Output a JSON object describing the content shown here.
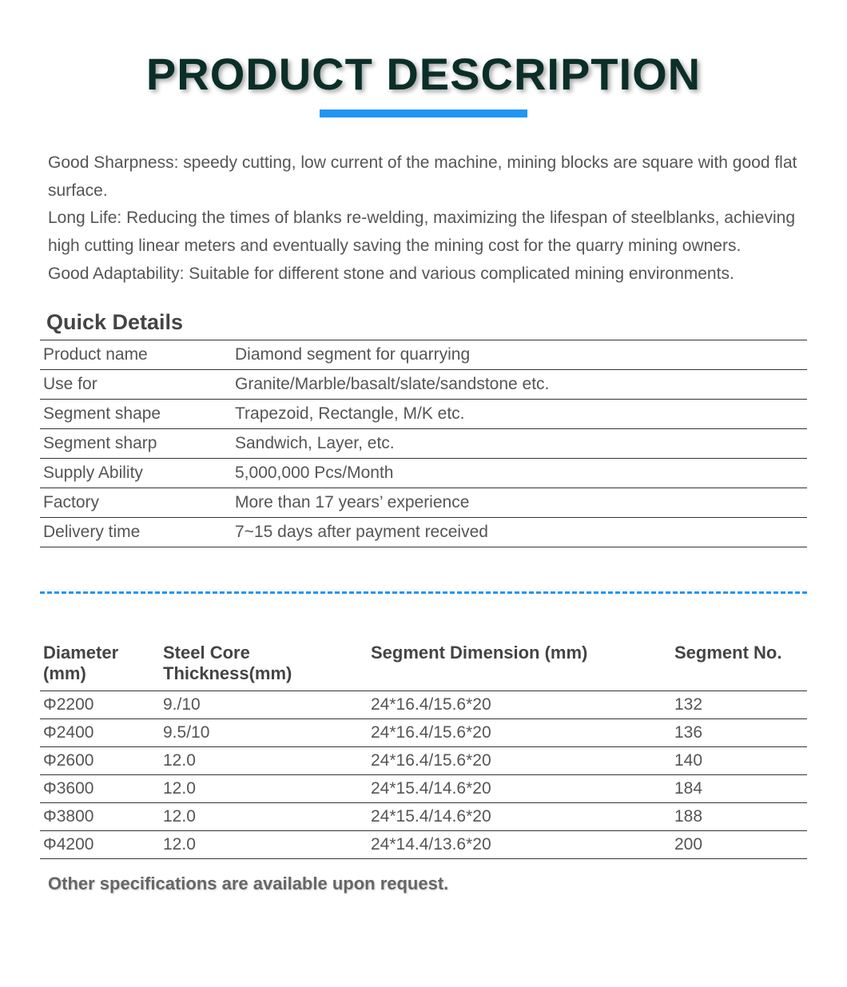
{
  "title": "PRODUCT DESCRIPTION",
  "description": {
    "line1": "Good Sharpness: speedy cutting, low current of the machine, mining blocks are square with good flat surface.",
    "line2": "Long Life: Reducing the times of blanks re-welding, maximizing the lifespan of steelblanks, achieving high cutting linear meters and eventually saving the mining cost for the quarry mining owners.",
    "line3": "Good Adaptability: Suitable for different stone and various complicated mining environments."
  },
  "quick_details_heading": "Quick Details",
  "details": [
    {
      "key": "Product name",
      "value": "Diamond segment for quarrying"
    },
    {
      "key": "Use for",
      "value": "Granite/Marble/basalt/slate/sandstone  etc."
    },
    {
      "key": "Segment shape",
      "value": "Trapezoid, Rectangle, M/K etc."
    },
    {
      "key": "Segment sharp",
      "value": "Sandwich, Layer, etc."
    },
    {
      "key": "Supply Ability",
      "value": "5,000,000 Pcs/Month"
    },
    {
      "key": "Factory",
      "value": "More than 17 years’  experience"
    },
    {
      "key": "Delivery time",
      "value": "7~15 days after payment received"
    }
  ],
  "spec_headers": {
    "diameter": "Diameter (mm)",
    "thickness": "Steel Core Thickness(mm)",
    "dimension": "Segment Dimension  (mm)",
    "segno": "Segment No."
  },
  "specs": [
    {
      "diameter": "Φ2200",
      "thickness": "9./10",
      "dimension": "24*16.4/15.6*20",
      "segno": "132"
    },
    {
      "diameter": "Φ2400",
      "thickness": "9.5/10",
      "dimension": "24*16.4/15.6*20",
      "segno": "136"
    },
    {
      "diameter": "Φ2600",
      "thickness": "12.0",
      "dimension": "24*16.4/15.6*20",
      "segno": "140"
    },
    {
      "diameter": "Φ3600",
      "thickness": "12.0",
      "dimension": "24*15.4/14.6*20",
      "segno": "184"
    },
    {
      "diameter": "Φ3800",
      "thickness": "12.0",
      "dimension": "24*15.4/14.6*20",
      "segno": "188"
    },
    {
      "diameter": "Φ4200",
      "thickness": "12.0",
      "dimension": "24*14.4/13.6*20",
      "segno": "200"
    }
  ],
  "footnote": "Other specifications are available upon request.",
  "colors": {
    "title_color": "#0b2e28",
    "accent_blue": "#2196f3",
    "text_color": "#555555",
    "border_color": "#333333",
    "background": "#ffffff"
  }
}
